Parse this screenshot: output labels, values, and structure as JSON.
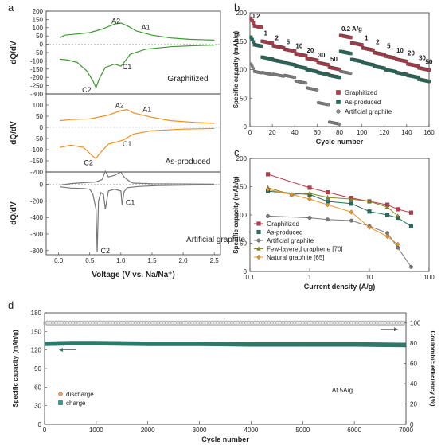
{
  "panels": {
    "a": "a",
    "b": "b",
    "c": "c",
    "d": "d"
  },
  "chart_data": [
    {
      "panel": "a",
      "type": "line",
      "xlabel": "Voltage (V vs. Na/Na⁺)",
      "ylabel": "dQ/dV",
      "xticks": [
        "0.0",
        "0.5",
        "1.0",
        "1.5",
        "2.0",
        "2.5"
      ],
      "xlim": [
        -0.2,
        2.6
      ],
      "subplots": [
        {
          "label": "Graphitized",
          "color": "#3a9a2e",
          "ylim": [
            -300,
            200
          ],
          "yticks": [
            "200",
            "150",
            "100",
            "50",
            "0",
            "-50",
            "-100",
            "-150",
            "-200",
            "-250",
            "-300"
          ],
          "peaks": [
            "A2",
            "A1",
            "C1",
            "C2"
          ],
          "charge": {
            "x": [
              0.02,
              0.1,
              0.3,
              0.5,
              0.7,
              0.9,
              1.0,
              1.1,
              1.25,
              1.5,
              1.8,
              2.1,
              2.5
            ],
            "y": [
              40,
              55,
              62,
              70,
              92,
              122,
              128,
              112,
              80,
              55,
              38,
              30,
              25
            ]
          },
          "discharge": {
            "x": [
              0.02,
              0.15,
              0.3,
              0.45,
              0.55,
              0.6,
              0.65,
              0.75,
              0.9,
              1.0,
              1.05,
              1.15,
              1.4,
              1.8,
              2.2,
              2.5
            ],
            "y": [
              -90,
              -95,
              -110,
              -160,
              -220,
              -262,
              -210,
              -140,
              -120,
              -132,
              -110,
              -60,
              -30,
              -15,
              -8,
              -5
            ]
          }
        },
        {
          "label": "As-produced",
          "color": "#f0901e",
          "ylim": [
            -200,
            150
          ],
          "yticks": [
            "100",
            "50",
            "0",
            "-50",
            "-100",
            "-150",
            "-200"
          ],
          "peaks": [
            "A2",
            "A1",
            "C1",
            "C2"
          ],
          "charge": {
            "x": [
              0.02,
              0.2,
              0.5,
              0.8,
              1.0,
              1.1,
              1.2,
              1.5,
              1.8,
              2.2,
              2.5
            ],
            "y": [
              30,
              35,
              38,
              55,
              75,
              80,
              65,
              45,
              30,
              22,
              18
            ]
          },
          "discharge": {
            "x": [
              0.02,
              0.2,
              0.4,
              0.55,
              0.6,
              0.65,
              0.8,
              1.0,
              1.05,
              1.2,
              1.5,
              2.0,
              2.5
            ],
            "y": [
              -90,
              -80,
              -90,
              -130,
              -140,
              -120,
              -75,
              -60,
              -55,
              -30,
              -15,
              -8,
              -5
            ]
          }
        },
        {
          "label": "Artificial graphite",
          "color": "#777777",
          "ylim": [
            -850,
            150
          ],
          "yticks": [
            "0",
            "-200",
            "-400",
            "-600",
            "-800"
          ],
          "peaks": [
            "C1",
            "C2"
          ],
          "charge": {
            "x": [
              0.02,
              0.2,
              0.4,
              0.6,
              0.7,
              0.75,
              0.8,
              0.9,
              1.0,
              1.05,
              1.1,
              1.15,
              1.2,
              1.5,
              2.0,
              2.5
            ],
            "y": [
              -10,
              10,
              20,
              30,
              60,
              160,
              90,
              110,
              150,
              90,
              60,
              30,
              15,
              8,
              5,
              3
            ]
          },
          "discharge": {
            "x": [
              0.02,
              0.2,
              0.4,
              0.5,
              0.55,
              0.6,
              0.62,
              0.64,
              0.68,
              0.72,
              0.75,
              0.8,
              0.9,
              1.0,
              1.02,
              1.05,
              1.1,
              1.3,
              1.6,
              2.0,
              2.5
            ],
            "y": [
              -30,
              -45,
              -50,
              -60,
              -120,
              -300,
              -820,
              -200,
              -100,
              -120,
              -300,
              -80,
              -60,
              -80,
              -250,
              -90,
              -40,
              -25,
              -15,
              -10,
              -5
            ]
          }
        }
      ]
    },
    {
      "panel": "b",
      "type": "scatter",
      "xlabel": "Cycle number",
      "ylabel": "Specific capacity (mAh/g)",
      "xlim": [
        0,
        160
      ],
      "ylim": [
        0,
        200
      ],
      "xticks": [
        0,
        20,
        40,
        60,
        80,
        100,
        120,
        140,
        160
      ],
      "yticks": [
        0,
        50,
        100,
        150,
        200
      ],
      "rate_labels": [
        {
          "text": "0.2",
          "x": 5,
          "y": 190
        },
        {
          "text": "1",
          "x": 14,
          "y": 160
        },
        {
          "text": "2",
          "x": 24,
          "y": 152
        },
        {
          "text": "5",
          "x": 34,
          "y": 145
        },
        {
          "text": "10",
          "x": 44,
          "y": 138
        },
        {
          "text": "20",
          "x": 54,
          "y": 130
        },
        {
          "text": "30",
          "x": 64,
          "y": 122
        },
        {
          "text": "50",
          "x": 75,
          "y": 115
        },
        {
          "text": "0.2 A/g",
          "x": 91,
          "y": 168
        },
        {
          "text": "1",
          "x": 104,
          "y": 152
        },
        {
          "text": "2",
          "x": 114,
          "y": 145
        },
        {
          "text": "5",
          "x": 124,
          "y": 138
        },
        {
          "text": "10",
          "x": 134,
          "y": 130
        },
        {
          "text": "20",
          "x": 144,
          "y": 125
        },
        {
          "text": "30",
          "x": 154,
          "y": 117
        },
        {
          "text": "50",
          "x": 160,
          "y": 110
        }
      ],
      "series": [
        {
          "name": "Graphitized",
          "color": "#c0374a",
          "marker": "square",
          "levels": [
            178,
            150,
            142,
            136,
            128,
            120,
            112,
            104,
            160,
            147,
            138,
            130,
            124,
            118,
            110,
            103
          ]
        },
        {
          "name": "As-produced",
          "color": "#1f6f5c",
          "marker": "square",
          "levels": [
            145,
            122,
            117,
            112,
            106,
            100,
            95,
            90,
            132,
            118,
            112,
            106,
            100,
            95,
            90,
            83
          ]
        },
        {
          "name": "Artificial graphite",
          "color": "#8a8a8a",
          "marker": "circle",
          "levels": [
            98,
            95,
            92,
            90,
            80,
            68,
            42,
            8,
            97,
            null,
            null,
            null,
            null,
            null,
            null,
            null
          ]
        }
      ]
    },
    {
      "panel": "c",
      "type": "line",
      "xlabel": "Current density (A/g)",
      "ylabel": "Specific capacity (mAh/g)",
      "xscale": "log",
      "xlim": [
        0.1,
        100
      ],
      "ylim": [
        0,
        200
      ],
      "xticks": [
        "0.1",
        "1",
        "10",
        "100"
      ],
      "yticks": [
        0,
        50,
        100,
        150,
        200
      ],
      "series": [
        {
          "name": "Graphitized",
          "color": "#c0374a",
          "marker": "square",
          "x": [
            0.2,
            1,
            2,
            5,
            10,
            20,
            30,
            50
          ],
          "y": [
            172,
            148,
            140,
            130,
            124,
            118,
            110,
            104
          ]
        },
        {
          "name": "As-produced",
          "color": "#1f6f5c",
          "marker": "square",
          "x": [
            0.2,
            1,
            2,
            5,
            10,
            20,
            30,
            50
          ],
          "y": [
            142,
            136,
            124,
            120,
            106,
            100,
            95,
            80
          ]
        },
        {
          "name": "Artificial graphite",
          "color": "#7a7a7a",
          "marker": "circle",
          "x": [
            0.2,
            1,
            2,
            5,
            10,
            20,
            30,
            50
          ],
          "y": [
            98,
            95,
            92,
            90,
            80,
            68,
            42,
            8
          ]
        },
        {
          "name": "Few-layered graphene [70]",
          "color": "#8a8a1c",
          "marker": "triangle",
          "x": [
            0.2,
            0.5,
            1,
            2,
            5,
            10,
            20,
            30
          ],
          "y": [
            148,
            136,
            138,
            131,
            128,
            124,
            114,
            98
          ]
        },
        {
          "name": "Natural graphite [65]",
          "color": "#f0901e",
          "marker": "diamond",
          "x": [
            0.2,
            0.5,
            1,
            2,
            5,
            10,
            20,
            30
          ],
          "y": [
            145,
            136,
            128,
            118,
            105,
            78,
            62,
            48
          ]
        }
      ]
    },
    {
      "panel": "d",
      "type": "scatter",
      "xlabel": "Cycle number",
      "ylabel": "Specific capacity (mAh/g)",
      "ylabel_right": "Coulombic efficiency (%)",
      "xlim": [
        0,
        7000
      ],
      "ylim": [
        0,
        180
      ],
      "ylim_right": [
        0,
        110
      ],
      "xticks": [
        0,
        1000,
        2000,
        3000,
        4000,
        5000,
        6000,
        7000
      ],
      "yticks": [
        0,
        30,
        60,
        90,
        120,
        150,
        180
      ],
      "yticks_right": [
        0,
        20,
        40,
        60,
        80,
        100
      ],
      "annotation": "At 5A/g",
      "series": [
        {
          "name": "discharge",
          "color": "#f0a05a",
          "marker": "circle"
        },
        {
          "name": "charge",
          "color": "#3a9a8a",
          "marker": "square"
        }
      ],
      "capacity": {
        "x": [
          0,
          500,
          1000,
          2000,
          3000,
          4000,
          5000,
          6000,
          7000
        ],
        "y": [
          130,
          131,
          131,
          130,
          130,
          129,
          129,
          129,
          128
        ]
      },
      "efficiency": {
        "x": [
          0,
          7000
        ],
        "y": [
          100,
          100
        ]
      }
    }
  ]
}
